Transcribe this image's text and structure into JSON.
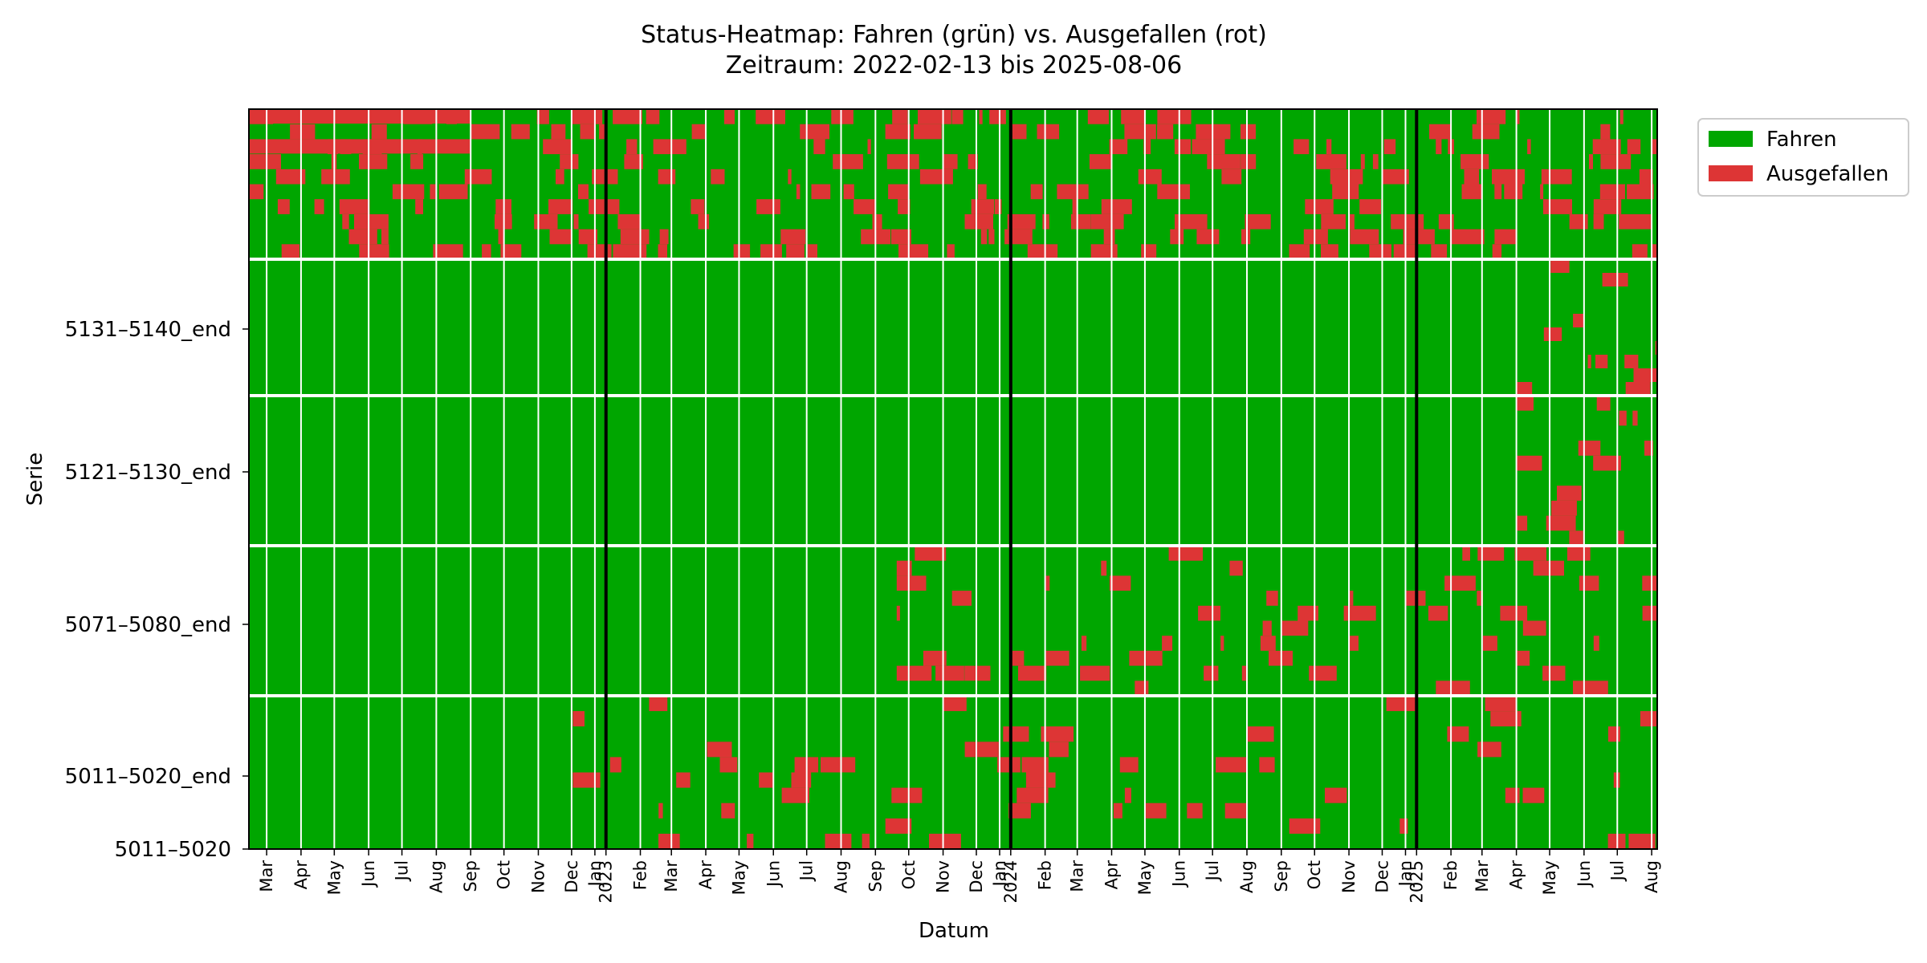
{
  "chart_data": {
    "type": "heatmap",
    "title_line1": "Status-Heatmap: Fahren (grün) vs. Ausgefallen (rot)",
    "title_line2": "Zeitraum: 2022-02-13 bis 2025-08-06",
    "xlabel": "Datum",
    "ylabel": "Serie",
    "x_range": [
      "2022-02-13",
      "2025-08-06"
    ],
    "year_boundaries": [
      "2023-01-01",
      "2024-01-01",
      "2025-01-01"
    ],
    "x_ticks": [
      {
        "date": "2022-03-01",
        "label": "Mar"
      },
      {
        "date": "2022-04-01",
        "label": "Apr"
      },
      {
        "date": "2022-05-01",
        "label": "May"
      },
      {
        "date": "2022-06-01",
        "label": "Jun"
      },
      {
        "date": "2022-07-01",
        "label": "Jul"
      },
      {
        "date": "2022-08-01",
        "label": "Aug"
      },
      {
        "date": "2022-09-01",
        "label": "Sep"
      },
      {
        "date": "2022-10-01",
        "label": "Oct"
      },
      {
        "date": "2022-11-01",
        "label": "Nov"
      },
      {
        "date": "2022-12-01",
        "label": "Dec"
      },
      {
        "date": "2022-12-22",
        "label": "Jan"
      },
      {
        "date": "2023-01-01",
        "label": "2023"
      },
      {
        "date": "2023-02-01",
        "label": "Feb"
      },
      {
        "date": "2023-03-01",
        "label": "Mar"
      },
      {
        "date": "2023-04-01",
        "label": "Apr"
      },
      {
        "date": "2023-05-01",
        "label": "May"
      },
      {
        "date": "2023-06-01",
        "label": "Jun"
      },
      {
        "date": "2023-07-01",
        "label": "Jul"
      },
      {
        "date": "2023-08-01",
        "label": "Aug"
      },
      {
        "date": "2023-09-01",
        "label": "Sep"
      },
      {
        "date": "2023-10-01",
        "label": "Oct"
      },
      {
        "date": "2023-11-01",
        "label": "Nov"
      },
      {
        "date": "2023-12-01",
        "label": "Dec"
      },
      {
        "date": "2023-12-22",
        "label": "Jan"
      },
      {
        "date": "2024-01-01",
        "label": "2024"
      },
      {
        "date": "2024-02-01",
        "label": "Feb"
      },
      {
        "date": "2024-03-01",
        "label": "Mar"
      },
      {
        "date": "2024-04-01",
        "label": "Apr"
      },
      {
        "date": "2024-05-01",
        "label": "May"
      },
      {
        "date": "2024-06-01",
        "label": "Jun"
      },
      {
        "date": "2024-07-01",
        "label": "Jul"
      },
      {
        "date": "2024-08-01",
        "label": "Aug"
      },
      {
        "date": "2024-09-01",
        "label": "Sep"
      },
      {
        "date": "2024-10-01",
        "label": "Oct"
      },
      {
        "date": "2024-11-01",
        "label": "Nov"
      },
      {
        "date": "2024-12-01",
        "label": "Dec"
      },
      {
        "date": "2024-12-22",
        "label": "Jan"
      },
      {
        "date": "2025-01-01",
        "label": "2025"
      },
      {
        "date": "2025-02-01",
        "label": "Feb"
      },
      {
        "date": "2025-03-01",
        "label": "Mar"
      },
      {
        "date": "2025-04-01",
        "label": "Apr"
      },
      {
        "date": "2025-05-01",
        "label": "May"
      },
      {
        "date": "2025-06-01",
        "label": "Jun"
      },
      {
        "date": "2025-07-01",
        "label": "Jul"
      },
      {
        "date": "2025-08-01",
        "label": "Aug"
      }
    ],
    "y_ticks": [
      "5131–5140_end",
      "5121–5130_end",
      "5071–5080_end",
      "5011–5020_end",
      "5011–5020"
    ],
    "rows": [
      {
        "label": "",
        "red": [
          [
            "2022-02-13",
            "2025-08-06"
          ]
        ],
        "red_note": "mixed"
      },
      {
        "label": "5131–5140_end",
        "red": [
          [
            "2025-04-01",
            "2025-08-06"
          ]
        ]
      },
      {
        "label": "5121–5130_end",
        "red": [
          [
            "2025-03-15",
            "2025-08-06"
          ]
        ]
      },
      {
        "label": "5071–5080_end",
        "red": [
          [
            "2023-10-01",
            "2025-08-06"
          ]
        ]
      },
      {
        "label": "5011–5020_end",
        "red": [
          [
            "2022-12-15",
            "2025-08-06"
          ]
        ]
      }
    ],
    "legend": [
      {
        "label": "Fahren",
        "color": "#00a600"
      },
      {
        "label": "Ausgefallen",
        "color": "#dd3535"
      }
    ],
    "legend_position": "upper right outside",
    "colors": {
      "fahren": "#00a600",
      "ausgefallen": "#dd3535",
      "month_line": "#ffffff",
      "year_line": "#000000"
    }
  }
}
